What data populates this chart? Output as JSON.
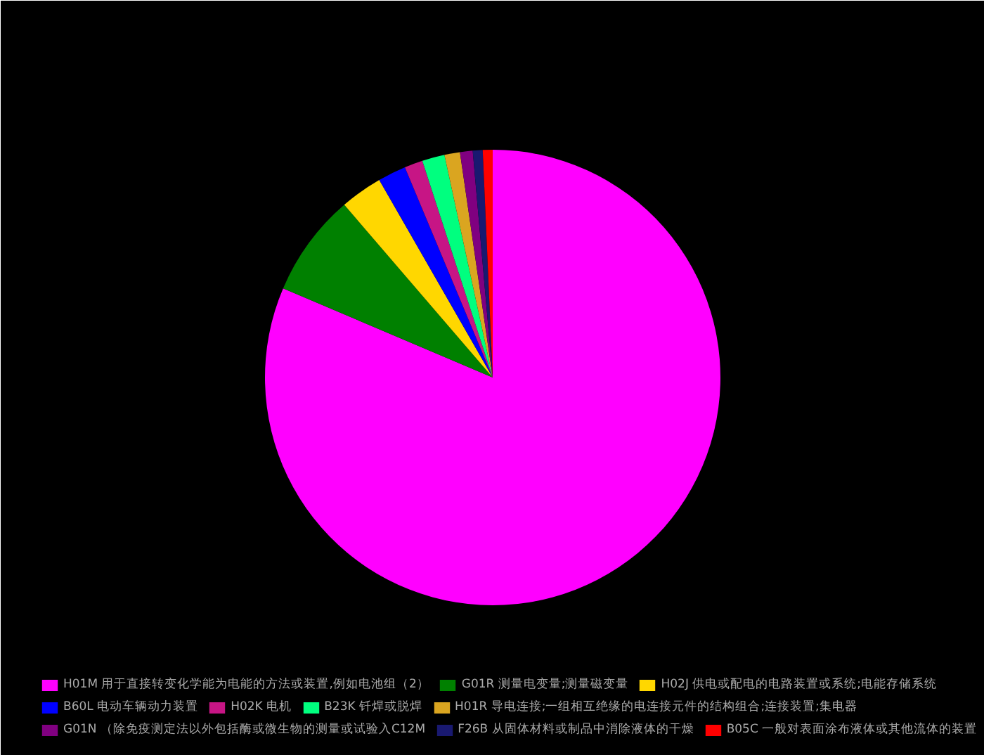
{
  "chart_data": {
    "type": "pie",
    "categories": [
      "H01M 用于直接转变化学能为电能的方法或装置,例如电池组（2）",
      "G01R 测量电变量;测量磁变量",
      "H02J 供电或配电的电路装置或系统;电能存储系统",
      "B60L 电动车辆动力装置",
      "H02K 电机",
      "B23K 钎焊或脱焊",
      "H01R 导电连接;一组相互绝缘的电连接元件的结构组合;连接装置;集电器",
      "G01N （除免疫测定法以外包括酶或微生物的测量或试验入C12M",
      "F26B 从固体材料或制品中消除液体的干燥",
      "B05C 一般对表面涂布液体或其他流体的装置"
    ],
    "values": [
      81.4,
      7.3,
      3.0,
      2.0,
      1.3,
      1.6,
      1.1,
      0.9,
      0.7,
      0.7
    ],
    "colors": [
      "#ff00ff",
      "#008000",
      "#ffd700",
      "#0000ff",
      "#c71585",
      "#00ff7f",
      "#daa520",
      "#800080",
      "#191970",
      "#ff0000"
    ],
    "legend": "bottom"
  }
}
